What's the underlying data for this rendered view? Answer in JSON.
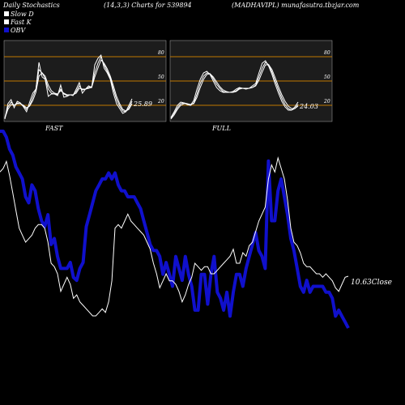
{
  "header": {
    "left": "Daily Stochastics",
    "center": "(14,3,3) Charts for 539894",
    "right": "(MADHAVIPL) munafasutra.tbzjar.com"
  },
  "legend": [
    {
      "label": "Slow  D",
      "color": "#ffffff"
    },
    {
      "label": "Fast  K",
      "color": "#ffffff"
    },
    {
      "label": "OBV",
      "color": "#1010cc"
    }
  ],
  "colors": {
    "background": "#000000",
    "panel_bg": "#1c1c1c",
    "level_line": "#c07800",
    "stoch_line": "#ffffff",
    "obv_line": "#1010cc",
    "close_line": "#ffffff"
  },
  "chart_data": [
    {
      "type": "line",
      "panel": "FAST",
      "title": "FAST",
      "ylim": [
        0,
        100
      ],
      "levels": [
        80,
        50,
        20
      ],
      "level_labels": [
        "80",
        "50",
        "20"
      ],
      "last_value_label": "25.89",
      "series": [
        {
          "values": [
            3,
            22,
            27,
            17,
            25,
            23,
            18,
            12,
            24,
            35,
            40,
            73,
            55,
            52,
            31,
            34,
            34,
            32,
            45,
            30,
            31,
            33,
            32,
            40,
            48,
            35,
            40,
            44,
            42,
            70,
            78,
            82,
            66,
            60,
            52,
            35,
            22,
            16,
            10,
            12,
            20,
            28
          ]
        },
        {
          "values": [
            5,
            18,
            24,
            20,
            23,
            22,
            19,
            15,
            20,
            30,
            40,
            64,
            60,
            53,
            40,
            35,
            34,
            33,
            40,
            34,
            32,
            33,
            33,
            37,
            44,
            39,
            40,
            42,
            43,
            60,
            72,
            80,
            70,
            62,
            54,
            40,
            27,
            19,
            13,
            12,
            17,
            25
          ]
        },
        {
          "values": [
            4,
            15,
            21,
            20,
            22,
            22,
            20,
            17,
            19,
            26,
            36,
            56,
            60,
            56,
            45,
            38,
            35,
            34,
            38,
            35,
            33,
            33,
            33,
            35,
            41,
            40,
            40,
            41,
            42,
            55,
            66,
            76,
            72,
            65,
            56,
            44,
            31,
            22,
            15,
            13,
            15,
            22
          ]
        }
      ]
    },
    {
      "type": "line",
      "panel": "FULL",
      "title": "FULL",
      "ylim": [
        0,
        100
      ],
      "levels": [
        80,
        50,
        20
      ],
      "level_labels": [
        "80",
        "50",
        "20"
      ],
      "last_value_label": "24.03",
      "series": [
        {
          "values": [
            5,
            12,
            20,
            24,
            23,
            21,
            20,
            26,
            40,
            52,
            60,
            62,
            58,
            50,
            42,
            38,
            36,
            36,
            36,
            37,
            40,
            42,
            41,
            40,
            41,
            44,
            47,
            60,
            72,
            75,
            68,
            58,
            46,
            35,
            25,
            18,
            14,
            14,
            18,
            24
          ]
        },
        {
          "values": [
            4,
            10,
            17,
            22,
            23,
            22,
            20,
            23,
            34,
            47,
            56,
            60,
            59,
            53,
            46,
            41,
            37,
            36,
            36,
            36,
            38,
            41,
            41,
            41,
            41,
            42,
            45,
            55,
            66,
            73,
            70,
            61,
            50,
            39,
            29,
            21,
            16,
            14,
            16,
            21
          ]
        },
        {
          "values": [
            3,
            8,
            15,
            20,
            22,
            22,
            21,
            22,
            30,
            42,
            52,
            58,
            59,
            55,
            49,
            43,
            39,
            37,
            36,
            36,
            37,
            40,
            41,
            41,
            41,
            42,
            44,
            51,
            61,
            70,
            70,
            64,
            54,
            43,
            33,
            25,
            19,
            16,
            16,
            19
          ]
        }
      ]
    },
    {
      "type": "line",
      "panel": "price",
      "title": "",
      "series": [
        {
          "name": "OBV",
          "values": [
            25,
            25,
            24,
            22,
            21,
            19,
            18,
            17,
            14,
            13,
            16,
            15,
            12,
            10,
            9,
            11,
            6,
            7,
            4,
            2,
            2,
            2,
            3,
            0.5,
            0,
            2,
            3,
            9,
            11,
            13,
            15,
            16,
            17,
            17,
            18,
            17,
            18,
            16,
            15,
            15,
            14,
            14,
            14,
            13,
            12,
            10,
            8,
            6,
            5,
            5,
            4,
            1,
            3,
            1,
            -1,
            4,
            2,
            0,
            4,
            1,
            -1,
            -5,
            -5,
            1,
            1,
            -4,
            1,
            4,
            -2,
            -3,
            -5,
            -2,
            -6,
            -2,
            1,
            1,
            -1,
            2,
            4,
            6,
            8,
            5,
            4,
            2,
            20,
            10,
            10,
            15,
            17,
            14,
            11,
            7,
            5,
            2,
            -1,
            -2,
            0,
            -2,
            -1,
            -1,
            -1,
            -1,
            -2,
            -2,
            -3,
            -6,
            -5,
            -6,
            -7,
            -8
          ]
        },
        {
          "name": "Close",
          "values": [
            13.6,
            13.7,
            13.9,
            13.5,
            13.0,
            12.5,
            12.0,
            11.8,
            11.6,
            11.7,
            11.8,
            12.0,
            12.1,
            12.1,
            12.0,
            11.6,
            11.0,
            10.9,
            10.7,
            10.2,
            10.4,
            10.6,
            10.4,
            10.0,
            10.1,
            9.9,
            9.8,
            9.7,
            9.6,
            9.5,
            9.5,
            9.6,
            9.7,
            9.6,
            9.9,
            10.5,
            12.0,
            12.1,
            12.0,
            12.2,
            12.4,
            12.2,
            12.1,
            12.0,
            11.9,
            11.8,
            11.6,
            11.4,
            11.0,
            10.7,
            10.3,
            10.5,
            10.7,
            10.5,
            10.5,
            10.4,
            10.2,
            9.9,
            10.1,
            10.4,
            10.6,
            11.0,
            10.9,
            10.8,
            10.9,
            10.9,
            10.7,
            10.7,
            10.8,
            10.9,
            11.0,
            11.1,
            11.2,
            11.4,
            11.0,
            11.0,
            11.3,
            11.2,
            11.5,
            11.6,
            11.9,
            12.2,
            12.4,
            12.6,
            13.4,
            13.8,
            13.6,
            14.0,
            13.7,
            13.4,
            12.8,
            12.0,
            11.6,
            11.5,
            11.3,
            11.0,
            10.9,
            10.9,
            10.8,
            10.7,
            10.7,
            10.6,
            10.7,
            10.6,
            10.5,
            10.3,
            10.2,
            10.4,
            10.6,
            10.63
          ]
        }
      ],
      "close_label": "10.63Close"
    }
  ]
}
